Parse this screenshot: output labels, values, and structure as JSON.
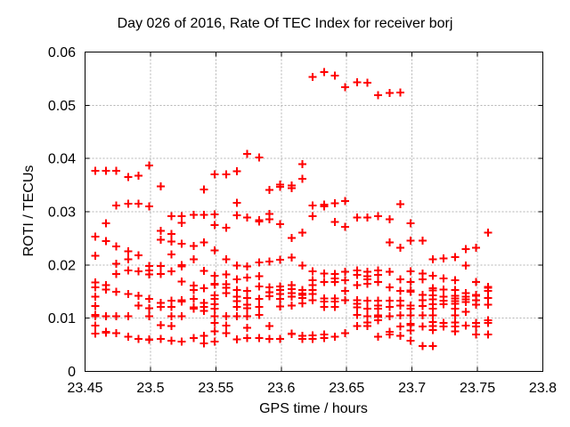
{
  "title": "Day 026 of 2016, Rate Of TEC Index for receiver borj",
  "chart_data": {
    "type": "scatter",
    "title": "Day 026 of 2016, Rate Of TEC Index for receiver borj",
    "xlabel": "GPS time / hours",
    "ylabel": "ROTI / TECUs",
    "xlim": [
      23.45,
      23.8
    ],
    "ylim": [
      0,
      0.06
    ],
    "xticks": [
      {
        "v": 23.45,
        "label": "23.45"
      },
      {
        "v": 23.5,
        "label": "23.5"
      },
      {
        "v": 23.55,
        "label": "23.55"
      },
      {
        "v": 23.6,
        "label": "23.6"
      },
      {
        "v": 23.65,
        "label": "23.65"
      },
      {
        "v": 23.7,
        "label": "23.7"
      },
      {
        "v": 23.75,
        "label": "23.75"
      },
      {
        "v": 23.8,
        "label": "23.8"
      }
    ],
    "yticks": [
      {
        "v": 0,
        "label": "0"
      },
      {
        "v": 0.01,
        "label": "0.01"
      },
      {
        "v": 0.02,
        "label": "0.02"
      },
      {
        "v": 0.03,
        "label": "0.03"
      },
      {
        "v": 0.04,
        "label": "0.04"
      },
      {
        "v": 0.05,
        "label": "0.05"
      },
      {
        "v": 0.06,
        "label": "0.06"
      }
    ],
    "grid": true,
    "legend": false,
    "marker": {
      "symbol": "plus",
      "color": "#ff0000",
      "size": 9
    },
    "colors": {
      "border": "#000000",
      "grid": "#b3b3b3",
      "text": "#000000",
      "background": "#ffffff"
    },
    "series": [
      {
        "t": 23.458,
        "roti": [
          0.0377,
          0.0253,
          0.0217,
          0.0167,
          0.0158,
          0.014,
          0.0123,
          0.0106,
          0.0104,
          0.0086,
          0.0071
        ]
      },
      {
        "t": 23.466,
        "roti": [
          0.0377,
          0.0278,
          0.0245,
          0.0162,
          0.0154,
          0.0104,
          0.0074,
          0.0073
        ]
      },
      {
        "t": 23.474,
        "roti": [
          0.0377,
          0.0312,
          0.0235,
          0.0202,
          0.0183,
          0.015,
          0.0104,
          0.0072
        ]
      },
      {
        "t": 23.483,
        "roti": [
          0.0365,
          0.0315,
          0.0226,
          0.0211,
          0.019,
          0.0145,
          0.0104,
          0.0065
        ]
      },
      {
        "t": 23.491,
        "roti": [
          0.0368,
          0.0315,
          0.0218,
          0.0188,
          0.0142,
          0.0124,
          0.0061
        ]
      },
      {
        "t": 23.499,
        "roti": [
          0.0387,
          0.031,
          0.0198,
          0.019,
          0.0182,
          0.0136,
          0.0119,
          0.0104,
          0.006,
          0.0059
        ]
      },
      {
        "t": 23.508,
        "roti": [
          0.0348,
          0.0264,
          0.0247,
          0.0198,
          0.0183,
          0.0129,
          0.0121,
          0.0087,
          0.0061
        ]
      },
      {
        "t": 23.516,
        "roti": [
          0.0292,
          0.0258,
          0.0244,
          0.022,
          0.0188,
          0.0133,
          0.0121,
          0.0104,
          0.0085,
          0.0058
        ]
      },
      {
        "t": 23.524,
        "roti": [
          0.0292,
          0.0279,
          0.024,
          0.02,
          0.0197,
          0.0169,
          0.0134,
          0.0131,
          0.0104,
          0.0056
        ]
      },
      {
        "t": 23.533,
        "roti": [
          0.0294,
          0.0236,
          0.0211,
          0.0161,
          0.0153,
          0.0136,
          0.012,
          0.0118,
          0.0063
        ]
      },
      {
        "t": 23.541,
        "roti": [
          0.0342,
          0.0294,
          0.0242,
          0.0189,
          0.0156,
          0.0129,
          0.0121,
          0.0114,
          0.0067,
          0.0053
        ]
      },
      {
        "t": 23.549,
        "roti": [
          0.037,
          0.0295,
          0.0275,
          0.0227,
          0.018,
          0.0165,
          0.0163,
          0.0143,
          0.0136,
          0.0126,
          0.0118,
          0.0104,
          0.0091,
          0.0075,
          0.0056
        ]
      },
      {
        "t": 23.558,
        "roti": [
          0.037,
          0.027,
          0.0211,
          0.0182,
          0.0164,
          0.0157,
          0.0147,
          0.0104,
          0.0086,
          0.0072
        ]
      },
      {
        "t": 23.566,
        "roti": [
          0.0376,
          0.0317,
          0.0293,
          0.0199,
          0.0173,
          0.0153,
          0.014,
          0.0132,
          0.0121,
          0.0104,
          0.006
        ]
      },
      {
        "t": 23.574,
        "roti": [
          0.0409,
          0.0289,
          0.0197,
          0.0176,
          0.0151,
          0.0138,
          0.0125,
          0.0119,
          0.0104,
          0.0082,
          0.0063
        ]
      },
      {
        "t": 23.583,
        "roti": [
          0.0402,
          0.0284,
          0.0282,
          0.0205,
          0.0179,
          0.016,
          0.0136,
          0.0121,
          0.0106,
          0.0063
        ]
      },
      {
        "t": 23.591,
        "roti": [
          0.0341,
          0.0296,
          0.0286,
          0.0206,
          0.0158,
          0.0149,
          0.0141,
          0.0085,
          0.0061
        ]
      },
      {
        "t": 23.599,
        "roti": [
          0.0351,
          0.0347,
          0.0277,
          0.021,
          0.016,
          0.0153,
          0.0145,
          0.0136,
          0.0122,
          0.0061
        ]
      },
      {
        "t": 23.608,
        "roti": [
          0.0349,
          0.0344,
          0.0251,
          0.0214,
          0.0162,
          0.0155,
          0.0147,
          0.014,
          0.0124,
          0.0071,
          0.007
        ]
      },
      {
        "t": 23.616,
        "roti": [
          0.0389,
          0.0362,
          0.0261,
          0.0199,
          0.0153,
          0.0146,
          0.0144,
          0.0138,
          0.0128,
          0.0067,
          0.0061
        ]
      },
      {
        "t": 23.624,
        "roti": [
          0.0553,
          0.0312,
          0.0292,
          0.0188,
          0.0171,
          0.0162,
          0.0153,
          0.0145,
          0.0134,
          0.0068,
          0.0061
        ]
      },
      {
        "t": 23.633,
        "roti": [
          0.0562,
          0.0313,
          0.031,
          0.0184,
          0.0168,
          0.0137,
          0.0131,
          0.0121,
          0.0069,
          0.0063
        ]
      },
      {
        "t": 23.641,
        "roti": [
          0.0556,
          0.0316,
          0.0281,
          0.0183,
          0.0175,
          0.0168,
          0.0137,
          0.0131,
          0.0121,
          0.0065
        ]
      },
      {
        "t": 23.649,
        "roti": [
          0.0534,
          0.032,
          0.0272,
          0.0187,
          0.0171,
          0.0151,
          0.0134,
          0.0072
        ]
      },
      {
        "t": 23.658,
        "roti": [
          0.0543,
          0.0289,
          0.019,
          0.0181,
          0.0162,
          0.0134,
          0.0127,
          0.012,
          0.0106,
          0.0085
        ]
      },
      {
        "t": 23.666,
        "roti": [
          0.0542,
          0.0289,
          0.0187,
          0.0179,
          0.0173,
          0.0165,
          0.0133,
          0.0118,
          0.0104,
          0.0092,
          0.0085
        ]
      },
      {
        "t": 23.674,
        "roti": [
          0.0519,
          0.0292,
          0.019,
          0.0181,
          0.0168,
          0.0133,
          0.0124,
          0.0118,
          0.0105,
          0.0103,
          0.0096,
          0.0065
        ]
      },
      {
        "t": 23.683,
        "roti": [
          0.0523,
          0.0286,
          0.0242,
          0.0187,
          0.0158,
          0.0133,
          0.0121,
          0.0104,
          0.0074,
          0.0069
        ]
      },
      {
        "t": 23.691,
        "roti": [
          0.0524,
          0.0314,
          0.0232,
          0.0173,
          0.0151,
          0.0133,
          0.0124,
          0.0105,
          0.0084,
          0.0067
        ]
      },
      {
        "t": 23.699,
        "roti": [
          0.0278,
          0.0246,
          0.0188,
          0.0168,
          0.0152,
          0.015,
          0.0124,
          0.0118,
          0.0105,
          0.0089,
          0.0087,
          0.0077,
          0.0058
        ]
      },
      {
        "t": 23.708,
        "roti": [
          0.0246,
          0.0184,
          0.0173,
          0.0144,
          0.0134,
          0.0123,
          0.0105,
          0.0084,
          0.0048
        ]
      },
      {
        "t": 23.716,
        "roti": [
          0.0211,
          0.018,
          0.0156,
          0.0152,
          0.0143,
          0.0135,
          0.0126,
          0.0118,
          0.0105,
          0.0093,
          0.0085,
          0.0078,
          0.0048
        ]
      },
      {
        "t": 23.724,
        "roti": [
          0.0212,
          0.0175,
          0.0154,
          0.014,
          0.0133,
          0.0126,
          0.0091,
          0.0084
        ]
      },
      {
        "t": 23.733,
        "roti": [
          0.0215,
          0.0171,
          0.0153,
          0.0142,
          0.0137,
          0.0132,
          0.0127,
          0.0118,
          0.0105,
          0.0092,
          0.0084,
          0.0075
        ]
      },
      {
        "t": 23.741,
        "roti": [
          0.023,
          0.0199,
          0.0147,
          0.014,
          0.0135,
          0.013,
          0.0112,
          0.0086
        ]
      },
      {
        "t": 23.749,
        "roti": [
          0.0232,
          0.0168,
          0.0144,
          0.0142,
          0.0134,
          0.0125,
          0.0091,
          0.0084,
          0.0069
        ]
      },
      {
        "t": 23.758,
        "roti": [
          0.0261,
          0.0159,
          0.0157,
          0.0151,
          0.0138,
          0.0125,
          0.0096,
          0.0091,
          0.0069
        ]
      }
    ]
  }
}
